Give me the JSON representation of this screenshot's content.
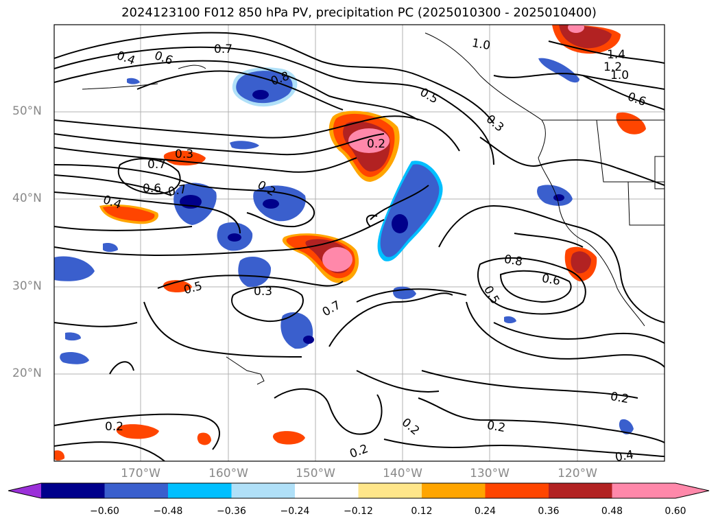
{
  "title": "2024123100 F012 850 hPa PV, precipitation PC (2025010300 - 2025010400)",
  "lat_labels": [
    "50°N",
    "40°N",
    "30°N",
    "20°N"
  ],
  "lon_labels": [
    "170°W",
    "160°W",
    "150°W",
    "140°W",
    "130°W",
    "120°W"
  ],
  "contour_labels": [
    "0.4",
    "0.6",
    "0.7",
    "0.8",
    "1.0",
    "1.4",
    "1.2",
    "1.0",
    "0.6",
    "0.5",
    "0.3",
    "0.2",
    "0.3",
    "0.7",
    "0.6",
    "0.7",
    "0.2",
    "0.4",
    "0.5",
    "0.3",
    "0.7",
    "0.8",
    "0.6",
    "0.5",
    "0.2",
    "0.2",
    "0.2",
    "0.2",
    "0.2",
    "0.4"
  ],
  "colorbar": {
    "ticks": [
      "−0.60",
      "−0.48",
      "−0.36",
      "−0.24",
      "−0.12",
      "0.12",
      "0.24",
      "0.36",
      "0.48",
      "0.60"
    ],
    "colors": [
      "#9b30d9",
      "#00008b",
      "#3a5fcd",
      "#00bfff",
      "#b0e0f8",
      "#ffffff",
      "#ffe68a",
      "#ffa500",
      "#ff4500",
      "#b22222",
      "#ff88aa",
      "#ff88aa"
    ]
  },
  "colors": {
    "neg_strong": "#00008b",
    "neg_mid": "#3a5fcd",
    "neg_light": "#00bfff",
    "pos_yellow": "#ffe68a",
    "pos_orange": "#ffa500",
    "pos_red": "#ff4500",
    "pos_dark": "#b22222",
    "pos_pink": "#ff88aa"
  }
}
